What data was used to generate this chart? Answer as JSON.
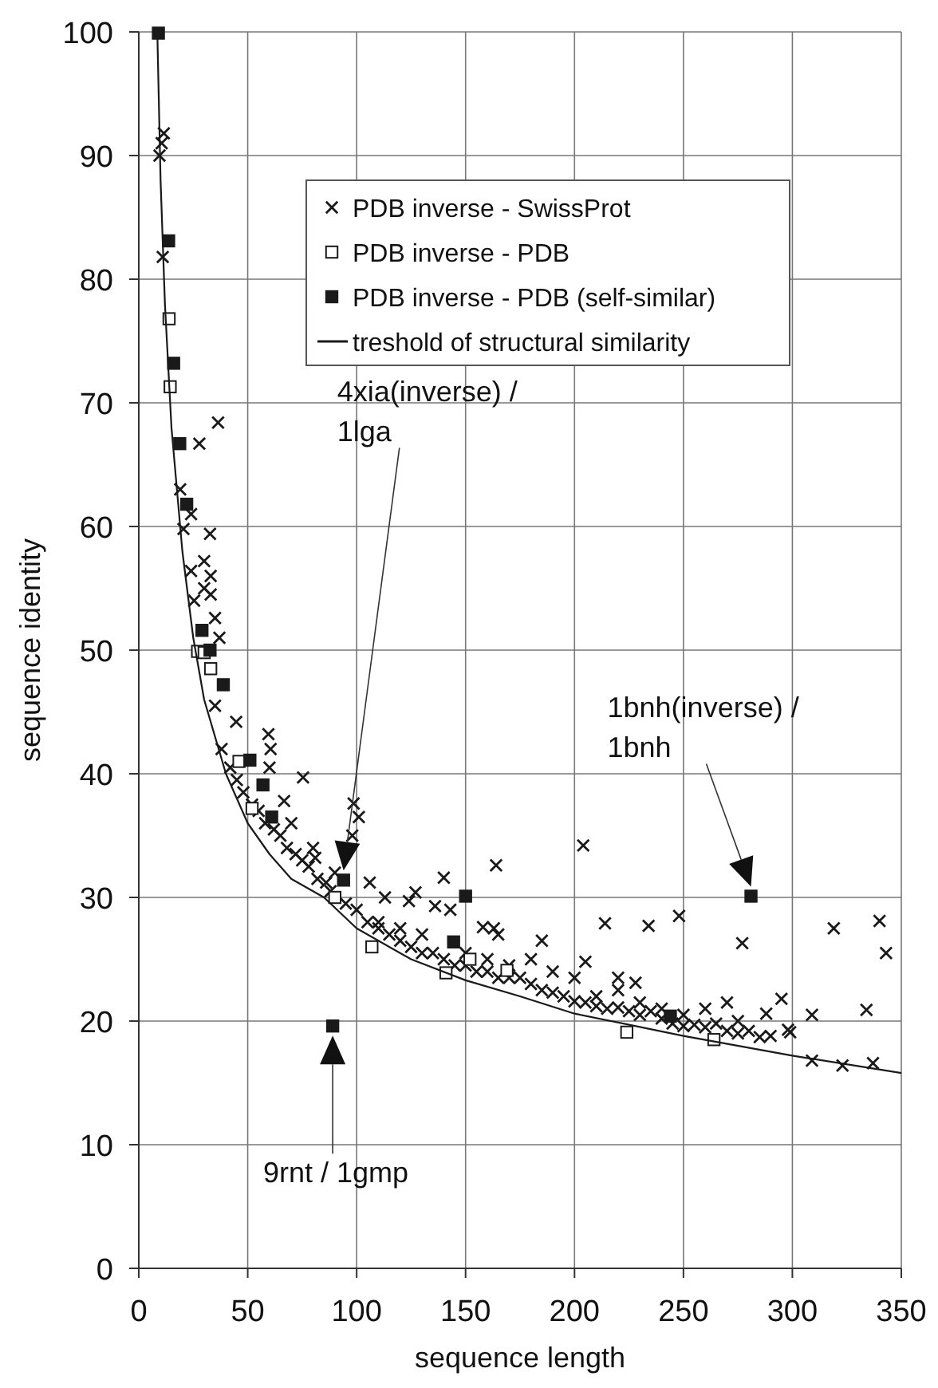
{
  "chart_data": {
    "type": "scatter",
    "xlabel": "sequence length",
    "ylabel": "sequence identity",
    "xlim": [
      0,
      350
    ],
    "ylim": [
      0,
      100
    ],
    "xticks": [
      0,
      50,
      100,
      150,
      200,
      250,
      300,
      350
    ],
    "yticks": [
      0,
      10,
      20,
      30,
      40,
      50,
      60,
      70,
      80,
      90,
      100
    ],
    "grid": true,
    "legend": "top right",
    "series": [
      {
        "name": "PDB inverse - SwissProt",
        "marker": "cross",
        "color": "#1a1a1a",
        "x": [
          9.5,
          10.5,
          11.5,
          11,
          19,
          24,
          20.5,
          27.8,
          36.4,
          32.7,
          24,
          30,
          33,
          25.4,
          30,
          33,
          35,
          37,
          35,
          44.7,
          59.5,
          60.5,
          75.4,
          66.7,
          98.6,
          101,
          98,
          81,
          86,
          106,
          113,
          124,
          127,
          140,
          136,
          143,
          164,
          158,
          165,
          38,
          42,
          45,
          48,
          52,
          55,
          58,
          62,
          65,
          68,
          72,
          75,
          78,
          82,
          88,
          95,
          100,
          105,
          110,
          115,
          120,
          125,
          130,
          135,
          140,
          145,
          150,
          155,
          160,
          165,
          170,
          175,
          180,
          185,
          190,
          195,
          200,
          205,
          210,
          215,
          220,
          225,
          230,
          235,
          240,
          245,
          250,
          255,
          260,
          265,
          270,
          275,
          280,
          285,
          290,
          298,
          60,
          70,
          80,
          90,
          110,
          120,
          130,
          150,
          160,
          170,
          180,
          190,
          200,
          210,
          220,
          230,
          240,
          250,
          260,
          270,
          275,
          204,
          214,
          234,
          248,
          277,
          319,
          340,
          343,
          205,
          185,
          163,
          288,
          295,
          309,
          334,
          299,
          309,
          323,
          337,
          220,
          228
        ],
        "values": [
          90,
          91,
          91.8,
          81.8,
          63,
          61,
          59.8,
          66.7,
          68.4,
          59.4,
          56.4,
          57.2,
          56,
          54,
          55,
          54.5,
          52.6,
          51,
          45.5,
          44.2,
          43.2,
          42,
          39.7,
          37.8,
          37.6,
          36.5,
          35,
          33.2,
          31.2,
          31.2,
          30,
          29.7,
          30.4,
          31.6,
          29.3,
          29,
          32.6,
          27.6,
          27,
          42,
          40.5,
          39.5,
          38.5,
          37.5,
          37,
          36,
          35.5,
          35,
          34,
          33.5,
          33,
          32.5,
          31.5,
          30.5,
          29.5,
          29,
          28,
          27.5,
          27,
          26.5,
          26,
          25.5,
          25.5,
          25,
          24.5,
          24.5,
          24,
          24,
          23.5,
          23.5,
          23.5,
          23,
          22.5,
          22.3,
          22,
          21.6,
          21.5,
          21.2,
          21,
          21.1,
          20.8,
          20.5,
          20.8,
          20.2,
          19.8,
          19.6,
          19.7,
          19.5,
          19.8,
          19.2,
          19,
          19.2,
          18.7,
          18.8,
          19.3,
          40.5,
          36,
          34,
          32,
          28,
          27.5,
          27,
          25.5,
          25,
          24.5,
          25,
          24,
          23.5,
          22,
          22.5,
          21.5,
          21,
          20.5,
          21,
          21.5,
          20,
          34.2,
          27.9,
          27.7,
          28.5,
          26.3,
          27.5,
          28.1,
          25.5,
          24.8,
          26.5,
          27.5,
          20.6,
          21.8,
          20.5,
          20.9,
          19.1,
          16.8,
          16.4,
          16.6,
          23.5,
          23.1
        ]
      },
      {
        "name": "PDB inverse - PDB",
        "marker": "square",
        "color": "#ffffff",
        "x": [
          13.9,
          14.4,
          27,
          30,
          33,
          46,
          52,
          90,
          107,
          141,
          152,
          169,
          224,
          264
        ],
        "values": [
          76.8,
          71.3,
          49.9,
          49.8,
          48.5,
          41,
          37.2,
          30,
          26,
          23.9,
          25,
          24.1,
          19.1,
          18.5
        ]
      },
      {
        "name": "PDB inverse - PDB (self-similar)",
        "marker": "square",
        "color": "#1a1a1a",
        "x": [
          9,
          13.7,
          16,
          18.8,
          22,
          29,
          32.7,
          38.8,
          51,
          57,
          61,
          94,
          150,
          144.5,
          244,
          281,
          89
        ],
        "values": [
          99.9,
          83.1,
          73.2,
          66.7,
          61.8,
          51.6,
          50,
          47.2,
          41.1,
          39.1,
          36.5,
          31.4,
          30.1,
          26.4,
          20.4,
          30.1,
          19.6
        ]
      },
      {
        "name": "treshold of structural similarity",
        "type": "line",
        "marker": "none",
        "line_style": "solid",
        "color": "#1a1a1a",
        "x": [
          8.5,
          10,
          12,
          15,
          20,
          25,
          30,
          40,
          50,
          60,
          70,
          85,
          100,
          125,
          150,
          175,
          200,
          250,
          300,
          350
        ],
        "values": [
          100,
          88,
          78,
          68,
          58,
          51,
          46,
          40,
          36,
          33.5,
          31.5,
          30,
          27.5,
          25,
          23.3,
          22,
          20.6,
          18.8,
          17.2,
          15.8
        ]
      }
    ],
    "annotations": [
      "4xia(inverse) /\n1lga",
      "1bnh(inverse) /\n1bnh",
      "9rnt / 1gmp"
    ]
  }
}
